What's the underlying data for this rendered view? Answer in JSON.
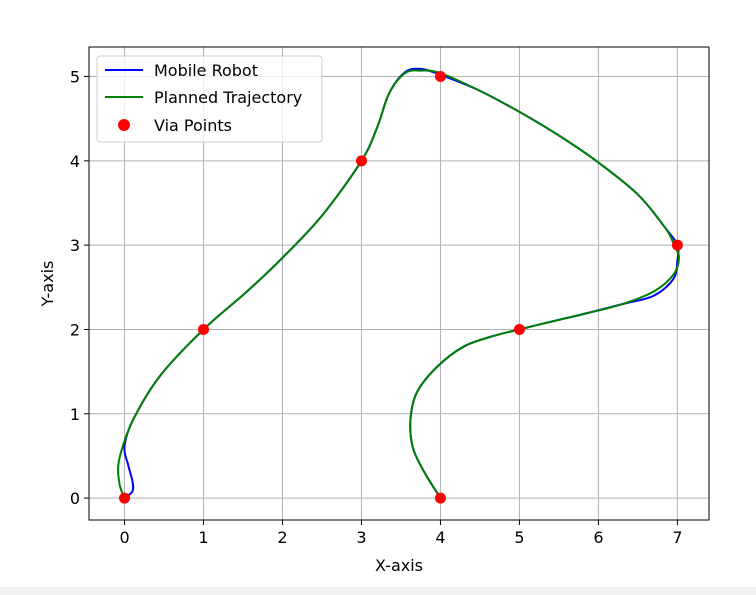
{
  "chart_data": {
    "type": "line",
    "xlabel": "X-axis",
    "ylabel": "Y-axis",
    "xlim": [
      -0.45,
      7.4
    ],
    "ylim": [
      -0.26,
      5.35
    ],
    "xticks": [
      0,
      1,
      2,
      3,
      4,
      5,
      6,
      7
    ],
    "yticks": [
      0,
      1,
      2,
      3,
      4,
      5
    ],
    "grid": true,
    "legend_position": "top-left",
    "legend": [
      "Mobile Robot",
      "Planned Trajectory",
      "Via Points"
    ],
    "series": [
      {
        "name": "Mobile Robot",
        "type": "line",
        "color": "#0000ff",
        "points": [
          [
            0,
            0
          ],
          [
            0.1,
            0.08
          ],
          [
            0.1,
            0.2
          ],
          [
            0.05,
            0.38
          ],
          [
            0.0,
            0.62
          ],
          [
            0.12,
            0.95
          ],
          [
            0.45,
            1.45
          ],
          [
            1.0,
            2.0
          ],
          [
            1.55,
            2.45
          ],
          [
            2.0,
            2.85
          ],
          [
            2.5,
            3.35
          ],
          [
            3.0,
            4.0
          ],
          [
            3.2,
            4.4
          ],
          [
            3.35,
            4.8
          ],
          [
            3.55,
            5.05
          ],
          [
            3.75,
            5.09
          ],
          [
            4.0,
            5.02
          ],
          [
            4.5,
            4.83
          ],
          [
            5.0,
            4.58
          ],
          [
            5.5,
            4.3
          ],
          [
            6.0,
            3.98
          ],
          [
            6.5,
            3.6
          ],
          [
            6.85,
            3.2
          ],
          [
            7.0,
            3.0
          ],
          [
            7.0,
            2.82
          ],
          [
            6.95,
            2.6
          ],
          [
            6.7,
            2.4
          ],
          [
            6.3,
            2.3
          ],
          [
            5.8,
            2.18
          ],
          [
            5.3,
            2.07
          ],
          [
            5.0,
            2.0
          ],
          [
            4.7,
            1.93
          ],
          [
            4.3,
            1.8
          ],
          [
            3.95,
            1.55
          ],
          [
            3.7,
            1.25
          ],
          [
            3.62,
            0.93
          ],
          [
            3.65,
            0.6
          ],
          [
            3.8,
            0.3
          ],
          [
            4.0,
            0.0
          ]
        ]
      },
      {
        "name": "Planned Trajectory",
        "type": "line",
        "color": "#008000",
        "points": [
          [
            0,
            0
          ],
          [
            -0.06,
            0.15
          ],
          [
            -0.08,
            0.38
          ],
          [
            -0.02,
            0.62
          ],
          [
            0.12,
            0.95
          ],
          [
            0.45,
            1.45
          ],
          [
            1.0,
            2.0
          ],
          [
            1.55,
            2.45
          ],
          [
            2.0,
            2.85
          ],
          [
            2.5,
            3.35
          ],
          [
            3.0,
            4.0
          ],
          [
            3.2,
            4.4
          ],
          [
            3.35,
            4.8
          ],
          [
            3.55,
            5.04
          ],
          [
            3.75,
            5.07
          ],
          [
            4.0,
            5.04
          ],
          [
            4.5,
            4.83
          ],
          [
            5.0,
            4.58
          ],
          [
            5.5,
            4.3
          ],
          [
            6.0,
            3.98
          ],
          [
            6.5,
            3.6
          ],
          [
            6.85,
            3.2
          ],
          [
            6.96,
            3.0
          ],
          [
            7.02,
            2.85
          ],
          [
            6.95,
            2.65
          ],
          [
            6.7,
            2.45
          ],
          [
            6.3,
            2.3
          ],
          [
            5.8,
            2.18
          ],
          [
            5.3,
            2.07
          ],
          [
            5.0,
            2.0
          ],
          [
            4.7,
            1.93
          ],
          [
            4.3,
            1.8
          ],
          [
            3.95,
            1.55
          ],
          [
            3.7,
            1.25
          ],
          [
            3.62,
            0.93
          ],
          [
            3.65,
            0.6
          ],
          [
            3.8,
            0.3
          ],
          [
            4.0,
            0.0
          ]
        ]
      },
      {
        "name": "Via Points",
        "type": "scatter",
        "color": "#ff0000",
        "points": [
          [
            0,
            0
          ],
          [
            1,
            2
          ],
          [
            3,
            4
          ],
          [
            4,
            5
          ],
          [
            7,
            3
          ],
          [
            5,
            2
          ],
          [
            4,
            0
          ]
        ]
      }
    ]
  }
}
